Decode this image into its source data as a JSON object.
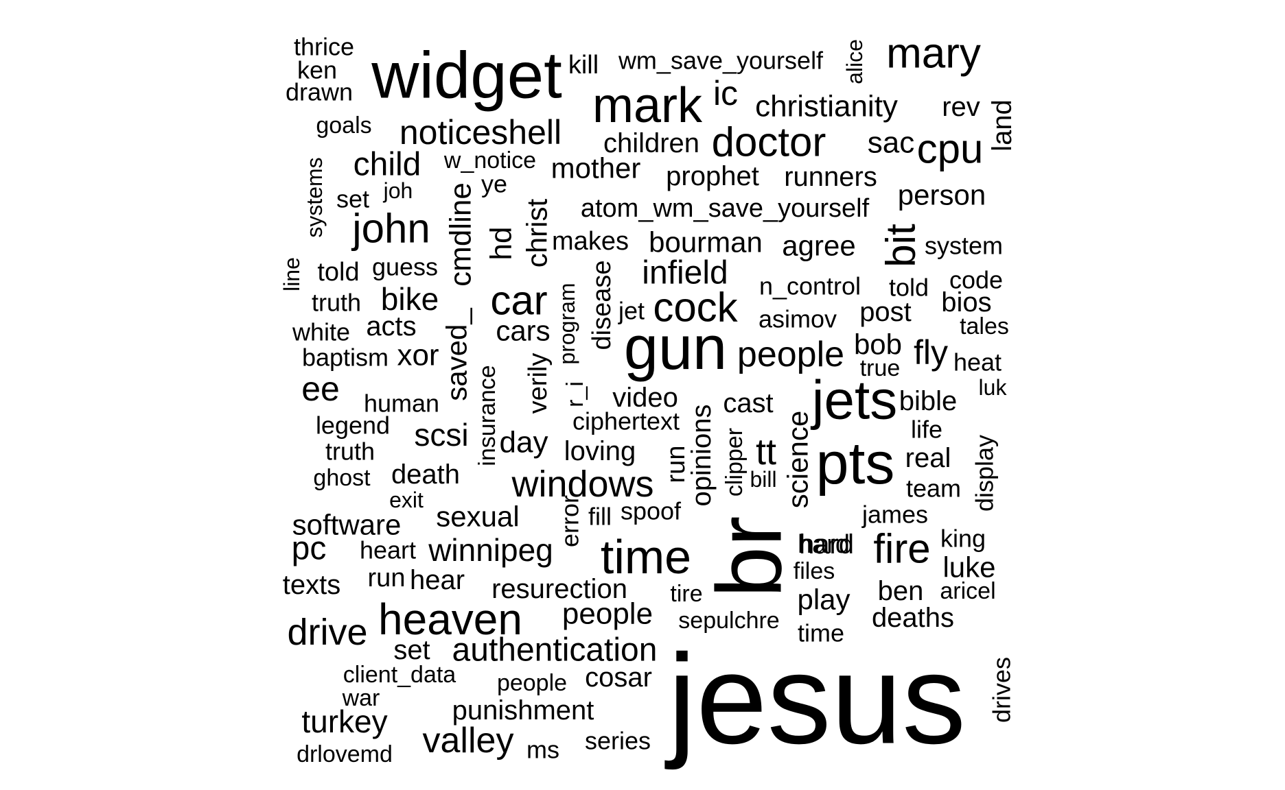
{
  "words": [
    "jesus",
    "br",
    "widget",
    "gun",
    "pts",
    "jets",
    "mark",
    "time",
    "heaven",
    "mary",
    "cpu",
    "doctor",
    "john",
    "car",
    "cock",
    "bit",
    "windows",
    "fire",
    "authentication",
    "drive",
    "noticeshell",
    "people",
    "infield",
    "child",
    "valley",
    "christianity",
    "cmdline",
    "people",
    "turkey",
    "pc",
    "christ",
    "winnipeg",
    "science",
    "ic",
    "ee",
    "hd",
    "bike",
    "scsi",
    "resurection",
    "saved_",
    "cars",
    "sexual",
    "mother",
    "punishment",
    "bourman",
    "agree",
    "person",
    "software",
    "disease",
    "xor",
    "sac",
    "land",
    "opinions",
    "tt",
    "rev",
    "luke",
    "play",
    "bob",
    "fly",
    "prophet",
    "runners",
    "atom_wm_save_yourself",
    "wm_save_yourself",
    "children",
    "video",
    "day",
    "loving",
    "cosar",
    "insurance",
    "verily",
    "cast",
    "death",
    "deaths",
    "hard",
    "hear",
    "time",
    "bible",
    "post",
    "kill",
    "makes",
    "error",
    "run",
    "real",
    "told",
    "acts",
    "run",
    "program",
    "texts",
    "set",
    "alice",
    "ben",
    "display",
    "hard",
    "drives",
    "system",
    "bios",
    "code",
    "n_control",
    "asimov",
    "truth",
    "human",
    "heart",
    "team",
    "life",
    "jet",
    "ciphertext",
    "w_notice",
    "ye",
    "heat",
    "spoof",
    "drlovemd",
    "thrice",
    "ms",
    "series",
    "told",
    "guess",
    "white",
    "legend",
    "baptism",
    "truth",
    "fill",
    "clipper",
    "sepulchre",
    "files",
    "tales",
    "james",
    "true",
    "ghost",
    "king",
    "aricel",
    "client_data",
    "r_i",
    "goals",
    "people",
    "systems",
    "tire",
    "ken",
    "drawn",
    "set",
    "war",
    "bill",
    "exit",
    "luk",
    "joh",
    "line"
  ]
}
